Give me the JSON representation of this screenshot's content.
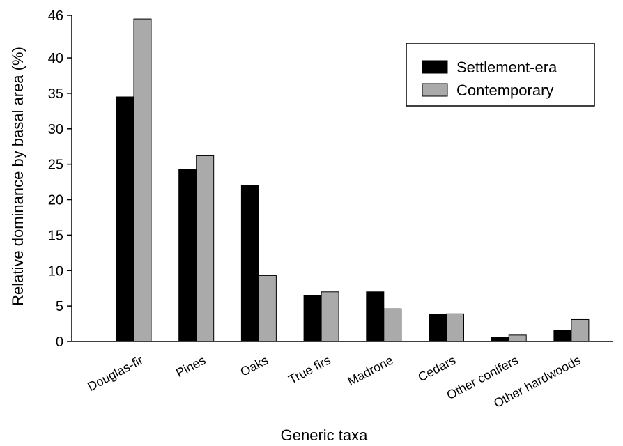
{
  "chart_data": {
    "type": "bar",
    "title": "",
    "xlabel": "Generic taxa",
    "ylabel": "Relative dominance by basal area (%)",
    "categories": [
      "Douglas-fir",
      "Pines",
      "Oaks",
      "True firs",
      "Madrone",
      "Cedars",
      "Other conifers",
      "Other hardwoods"
    ],
    "series": [
      {
        "name": "Settlement-era",
        "values": [
          34.5,
          24.3,
          22.0,
          6.5,
          7.0,
          3.8,
          0.6,
          1.6
        ],
        "color": "#000000"
      },
      {
        "name": "Contemporary",
        "values": [
          45.5,
          26.2,
          9.3,
          7.0,
          4.6,
          3.9,
          0.9,
          3.1
        ],
        "color": "#aaaaaa"
      }
    ],
    "yticks": [
      0,
      5,
      10,
      15,
      20,
      25,
      30,
      35,
      40,
      46
    ],
    "ylim": [
      0,
      46
    ],
    "grid": false,
    "legend_position": "top-right"
  }
}
